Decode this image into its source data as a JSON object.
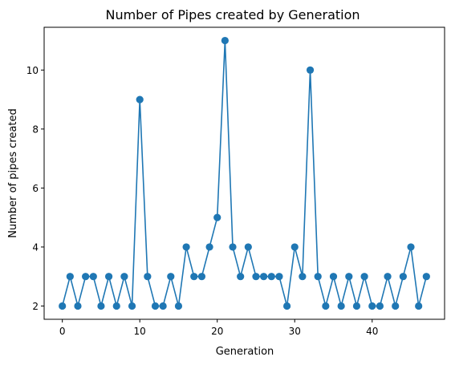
{
  "chart_data": {
    "type": "line",
    "title": "Number of Pipes created by Generation",
    "xlabel": "Generation",
    "ylabel": "Number of pipes created",
    "xlim": [
      -2.35,
      49.35
    ],
    "ylim": [
      1.55,
      11.45
    ],
    "x_ticks": [
      0,
      10,
      20,
      30,
      40
    ],
    "y_ticks": [
      2,
      4,
      6,
      8,
      10
    ],
    "grid": false,
    "color": "#1f77b4",
    "marker": "circle",
    "series": [
      {
        "x": [
          0,
          1,
          2,
          3,
          4,
          5,
          6,
          7,
          8,
          9,
          10,
          11,
          12,
          13,
          14,
          15,
          16,
          17,
          18,
          19,
          20,
          21,
          22,
          23,
          24,
          25,
          26,
          27,
          28,
          29,
          30,
          31,
          32,
          33,
          34,
          35,
          36,
          37,
          38,
          39,
          40,
          41,
          42,
          43,
          44,
          45,
          46,
          47
        ],
        "values": [
          2,
          3,
          2,
          3,
          3,
          2,
          3,
          2,
          3,
          2,
          9,
          3,
          2,
          2,
          3,
          2,
          4,
          3,
          3,
          4,
          5,
          11,
          4,
          3,
          4,
          3,
          3,
          3,
          3,
          2,
          4,
          3,
          10,
          3,
          2,
          3,
          2,
          3,
          2,
          3,
          2,
          2,
          3,
          2,
          3,
          4,
          2,
          3
        ]
      }
    ]
  }
}
